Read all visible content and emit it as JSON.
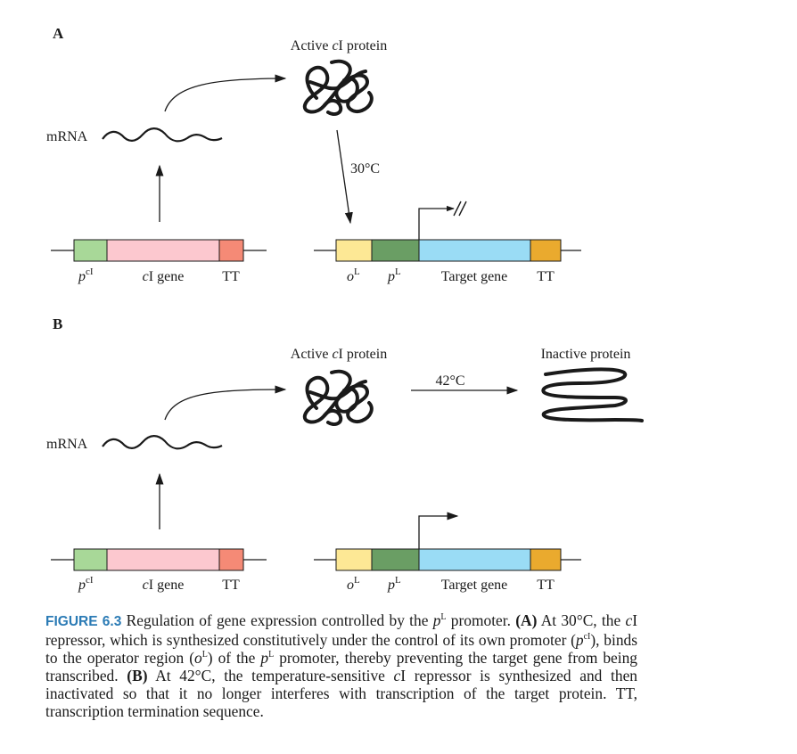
{
  "panels": {
    "A": {
      "letter": "A",
      "mrna_label": "mRNA",
      "protein_label_pre": "Active ",
      "protein_label_ci": "c",
      "protein_label_post": "I protein",
      "temperature": "30°C",
      "left_construct": {
        "promoter_p": "p",
        "promoter_sup": "cI",
        "gene_c": "c",
        "gene_rest": "I gene",
        "terminator": "TT"
      },
      "right_construct": {
        "operator_o": "o",
        "operator_sup": "L",
        "promoter_p": "p",
        "promoter_sup": "L",
        "target": "Target gene",
        "terminator": "TT"
      }
    },
    "B": {
      "letter": "B",
      "mrna_label": "mRNA",
      "protein_label_pre": "Active ",
      "protein_label_ci": "c",
      "protein_label_post": "I protein",
      "temperature": "42°C",
      "inactive_label": "Inactive protein",
      "left_construct": {
        "promoter_p": "p",
        "promoter_sup": "cI",
        "gene_c": "c",
        "gene_rest": "I gene",
        "terminator": "TT"
      },
      "right_construct": {
        "operator_o": "o",
        "operator_sup": "L",
        "promoter_p": "p",
        "promoter_sup": "L",
        "target": "Target gene",
        "terminator": "TT"
      }
    }
  },
  "colors": {
    "promoter_ci": "#a8d898",
    "ci_gene": "#fcc8cf",
    "terminator_left": "#f58a76",
    "operator": "#fde895",
    "promoter_pl": "#6a9e64",
    "target_gene": "#9adcf5",
    "terminator_right": "#eaaa2e",
    "figure_tag": "#2b7bb5"
  },
  "caption": {
    "figure_tag": "FIGURE 6.3",
    "t1": " Regulation of gene expression controlled by the ",
    "t1_p": "p",
    "t1_sup": "L",
    "t2": " promoter. ",
    "t2_a": "(A)",
    "t3": " At 30°C, the ",
    "t3_c": "c",
    "t4": "I repressor, which is synthesized constitutively under the control of its own promoter (",
    "t4_p": "p",
    "t4_sup": "cI",
    "t5": "), binds to the operator region (",
    "t5_o": "o",
    "t5_sup": "L",
    "t6": ") of the ",
    "t6_p": "p",
    "t6_sup": "L",
    "t7": " promoter, thereby preventing the target gene from being transcribed. ",
    "t7_b": "(B)",
    "t8": " At 42°C, the temperature-sensitive ",
    "t8_c": "c",
    "t9": "I repressor is synthesized and then inactivated so that it no longer interferes with transcription of the target protein. TT, transcription termination sequence."
  }
}
